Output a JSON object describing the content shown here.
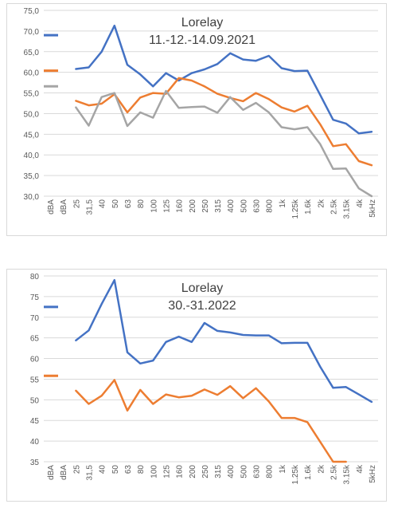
{
  "chart_data": [
    {
      "type": "line",
      "title": "Lorelay",
      "subtitle": "11.-12.-14.09.2021",
      "categories": [
        "dBA",
        "dBA",
        "25",
        "31,5",
        "40",
        "50",
        "63",
        "80",
        "100",
        "125",
        "160",
        "200",
        "250",
        "315",
        "400",
        "500",
        "630",
        "800",
        "1k",
        "1.25k",
        "1.6k",
        "2k",
        "2.5k",
        "3.15k",
        "4k",
        "5kHz"
      ],
      "ylim": [
        30,
        75
      ],
      "yticks": [
        "30,0",
        "35,0",
        "40,0",
        "45,0",
        "50,0",
        "55,0",
        "60,0",
        "65,0",
        "70,0",
        "75,0"
      ],
      "grid": true,
      "series": [
        {
          "color": "#4472C4",
          "legend_value": 69.0,
          "values": [
            null,
            null,
            60.8,
            61.2,
            65.0,
            71.3,
            61.8,
            59.5,
            56.6,
            59.8,
            58.0,
            59.8,
            60.7,
            62.0,
            64.6,
            63.1,
            62.8,
            64.0,
            61.0,
            60.3,
            60.4,
            54.5,
            48.5,
            47.6,
            45.2,
            45.6
          ]
        },
        {
          "color": "#ED7D31",
          "legend_value": 60.4,
          "values": [
            null,
            null,
            53.1,
            52.0,
            52.4,
            54.7,
            50.3,
            53.9,
            55.0,
            54.8,
            58.6,
            58.0,
            56.6,
            54.8,
            53.8,
            53.0,
            55.0,
            53.5,
            51.5,
            50.5,
            51.9,
            47.4,
            42.1,
            42.6,
            38.5,
            37.5
          ]
        },
        {
          "color": "#A5A5A5",
          "legend_value": 56.6,
          "values": [
            null,
            null,
            51.5,
            47.1,
            54.0,
            55.0,
            47.0,
            50.3,
            49.0,
            55.5,
            51.4,
            51.6,
            51.7,
            50.2,
            54.0,
            50.9,
            52.6,
            50.3,
            46.7,
            46.2,
            46.7,
            42.6,
            36.6,
            36.7,
            31.9,
            30.0
          ]
        }
      ]
    },
    {
      "type": "line",
      "title": "Lorelay",
      "subtitle": "30.-31.2022",
      "categories": [
        "dBA",
        "dBA",
        "25",
        "31,5",
        "40",
        "50",
        "63",
        "80",
        "100",
        "125",
        "160",
        "200",
        "250",
        "315",
        "400",
        "500",
        "630",
        "800",
        "1k",
        "1.25k",
        "1.6k",
        "2k",
        "2.5k",
        "3.15k",
        "4k",
        "5kHz"
      ],
      "ylim": [
        35,
        80
      ],
      "yticks": [
        "35",
        "40",
        "45",
        "50",
        "55",
        "60",
        "65",
        "70",
        "75",
        "80"
      ],
      "grid": true,
      "series": [
        {
          "color": "#4472C4",
          "legend_value": 72.5,
          "values": [
            null,
            null,
            64.4,
            66.8,
            73.2,
            79.0,
            61.5,
            58.8,
            59.5,
            64.0,
            65.3,
            64.0,
            68.6,
            66.7,
            66.3,
            65.7,
            65.6,
            65.6,
            63.7,
            63.8,
            63.8,
            58.0,
            52.9,
            53.1,
            51.3,
            49.5
          ]
        },
        {
          "color": "#ED7D31",
          "legend_value": 55.8,
          "values": [
            null,
            null,
            52.2,
            49.0,
            51.0,
            54.8,
            47.4,
            52.4,
            49.0,
            51.3,
            50.6,
            51.0,
            52.5,
            51.2,
            53.3,
            50.4,
            52.8,
            49.6,
            45.6,
            45.6,
            44.6,
            39.8,
            35.0,
            35.0,
            null,
            null
          ]
        }
      ]
    }
  ]
}
